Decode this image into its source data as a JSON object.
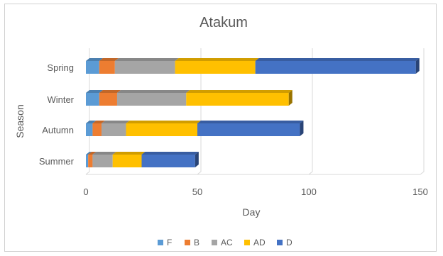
{
  "chart_data": {
    "type": "bar",
    "orientation": "horizontal",
    "stacked": true,
    "title": "Atakum",
    "xlabel": "Day",
    "ylabel": "Season",
    "categories": [
      "Summer",
      "Autumn",
      "Winter",
      "Spring"
    ],
    "xlim": [
      0,
      150
    ],
    "xticks": [
      0,
      50,
      100,
      150
    ],
    "grid": true,
    "legend_position": "bottom",
    "series": [
      {
        "name": "F",
        "color": "#5B9BD5",
        "values": [
          1,
          3,
          6,
          6
        ]
      },
      {
        "name": "B",
        "color": "#ED7D31",
        "values": [
          2,
          4,
          8,
          7
        ]
      },
      {
        "name": "AC",
        "color": "#A5A5A5",
        "values": [
          9,
          11,
          31,
          27
        ]
      },
      {
        "name": "AD",
        "color": "#FFC000",
        "values": [
          13,
          32,
          46,
          36
        ]
      },
      {
        "name": "D",
        "color": "#4472C4",
        "values": [
          24,
          46,
          0,
          72
        ]
      }
    ]
  }
}
